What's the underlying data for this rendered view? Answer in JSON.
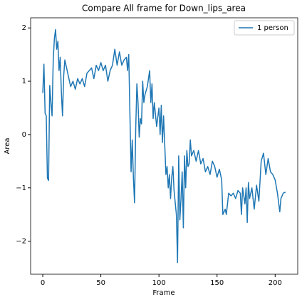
{
  "chart_data": {
    "type": "line",
    "title": "Compare All frame for Down_lips_area",
    "xlabel": "Frame",
    "ylabel": "Area",
    "x": [
      0,
      1,
      2,
      3,
      4,
      5,
      6,
      7,
      8,
      9,
      10,
      11,
      12,
      13,
      14,
      15,
      16,
      17,
      18,
      19,
      20,
      22,
      24,
      26,
      28,
      30,
      32,
      34,
      36,
      38,
      40,
      42,
      44,
      46,
      48,
      50,
      52,
      54,
      56,
      58,
      60,
      62,
      64,
      66,
      68,
      70,
      72,
      73,
      74,
      75,
      76,
      77,
      78,
      79,
      80,
      81,
      82,
      83,
      84,
      85,
      86,
      87,
      88,
      90,
      92,
      93,
      94,
      95,
      96,
      98,
      100,
      101,
      102,
      103,
      104,
      106,
      107,
      108,
      109,
      110,
      111,
      112,
      113,
      115,
      116,
      117,
      118,
      119,
      120,
      121,
      122,
      123,
      124,
      125,
      126,
      127,
      128,
      130,
      132,
      134,
      136,
      138,
      140,
      142,
      144,
      146,
      148,
      150,
      152,
      154,
      155,
      157,
      158,
      160,
      162,
      164,
      166,
      168,
      170,
      171,
      172,
      174,
      175,
      176,
      177,
      178,
      180,
      182,
      184,
      186,
      188,
      190,
      192,
      194,
      196,
      198,
      200,
      202,
      204,
      205,
      207,
      209
    ],
    "series": [
      {
        "name": "1 person",
        "color": "#1f77b4",
        "values": [
          0.78,
          1.32,
          0.4,
          0.35,
          -0.82,
          -0.86,
          0.92,
          0.6,
          0.35,
          1.4,
          1.8,
          1.97,
          1.6,
          1.75,
          1.2,
          1.45,
          0.8,
          0.35,
          1.1,
          1.4,
          1.3,
          1.1,
          0.9,
          1.0,
          0.85,
          1.05,
          0.95,
          1.05,
          0.9,
          1.15,
          1.2,
          1.25,
          1.05,
          1.3,
          1.2,
          1.35,
          1.2,
          1.3,
          1.0,
          1.2,
          1.3,
          1.6,
          1.3,
          1.55,
          1.3,
          1.4,
          1.45,
          1.2,
          1.5,
          0.4,
          -0.7,
          -0.1,
          -0.8,
          -1.28,
          0.1,
          0.95,
          0.6,
          -0.05,
          0.3,
          0.2,
          1.0,
          0.6,
          0.75,
          0.9,
          1.2,
          0.6,
          0.95,
          0.3,
          0.6,
          0.15,
          0.5,
          0.0,
          0.55,
          -0.15,
          0.35,
          -0.75,
          -0.6,
          -1.0,
          -0.75,
          -1.2,
          -0.8,
          -0.6,
          -1.05,
          -1.5,
          -2.4,
          -0.4,
          -1.6,
          -1.2,
          -0.7,
          -1.75,
          -0.4,
          -1.0,
          -0.3,
          -0.6,
          -0.55,
          -0.1,
          -0.4,
          -0.3,
          -0.5,
          -0.3,
          -0.55,
          -0.45,
          -0.7,
          -0.6,
          -0.75,
          -0.5,
          -0.6,
          -0.8,
          -0.65,
          -0.85,
          -1.5,
          -1.4,
          -1.5,
          -1.1,
          -1.15,
          -1.1,
          -1.2,
          -1.05,
          -1.1,
          -1.5,
          -1.0,
          -1.3,
          -1.0,
          -1.65,
          -0.9,
          -1.2,
          -1.0,
          -1.4,
          -0.95,
          -1.25,
          -0.5,
          -0.35,
          -0.75,
          -0.45,
          -0.7,
          -0.75,
          -0.85,
          -1.1,
          -1.45,
          -1.2,
          -1.1,
          -1.08
        ]
      }
    ],
    "xlim": [
      -10.45,
      219.45
    ],
    "ylim": [
      -2.62,
      2.19
    ],
    "xticks": [
      0,
      50,
      100,
      150,
      200
    ],
    "yticks": [
      {
        "value": -2,
        "label": "−2"
      },
      {
        "value": -1,
        "label": "−1"
      },
      0,
      1,
      2
    ],
    "legend": "upper right"
  }
}
